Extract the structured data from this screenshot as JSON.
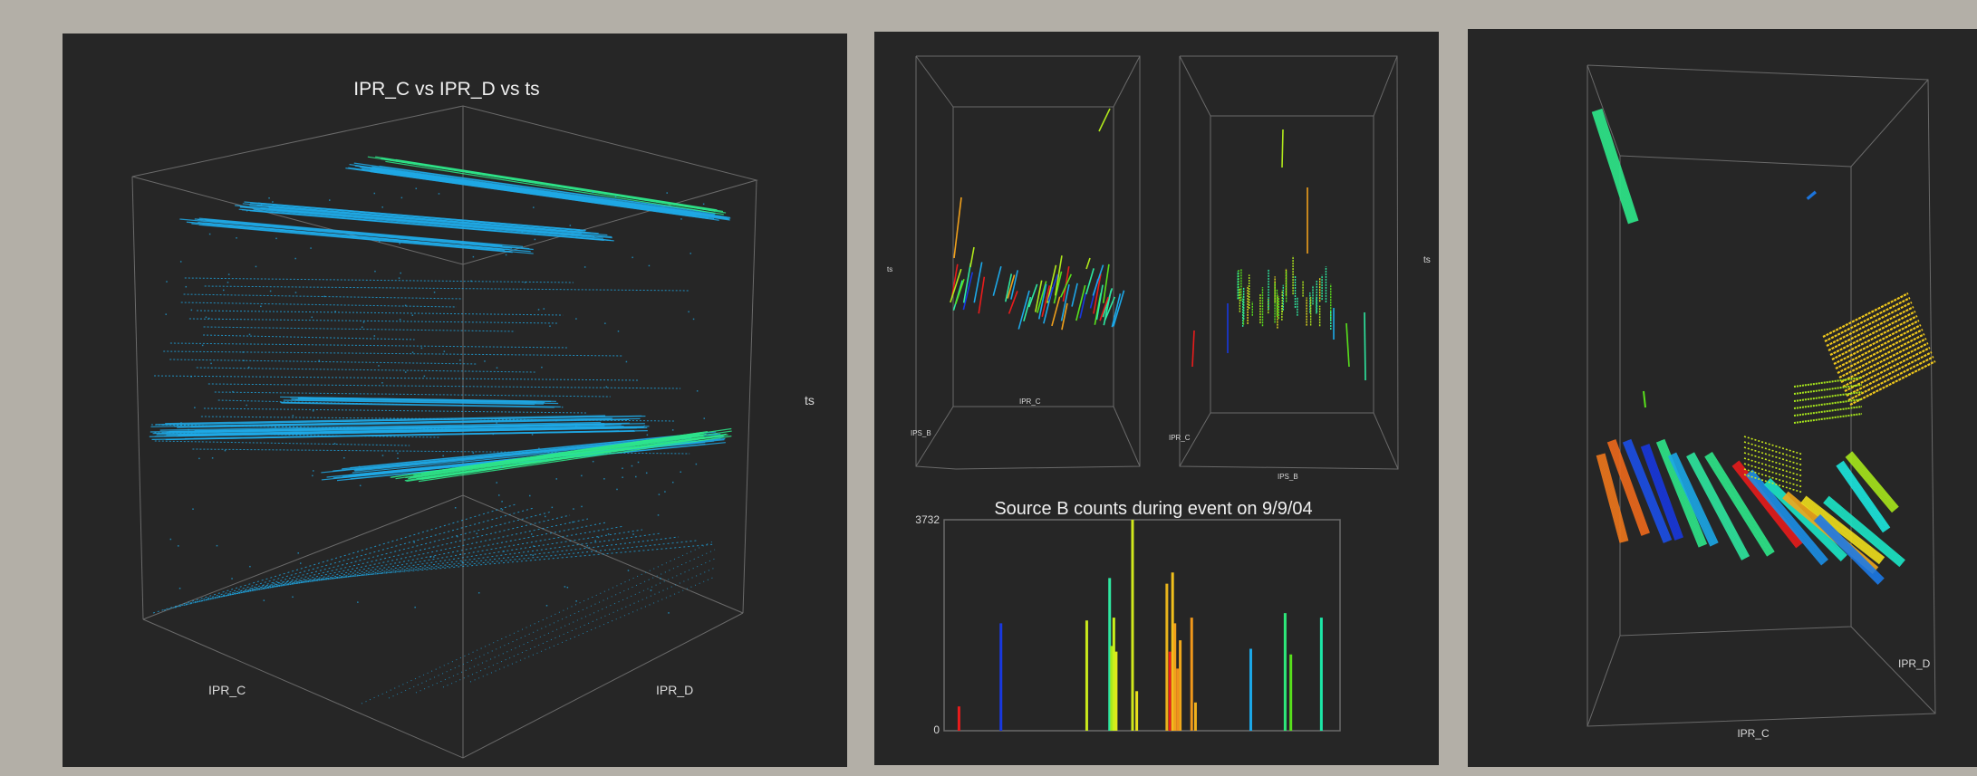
{
  "colors": {
    "background": "#b3afa7",
    "panel": "#262626",
    "box_lines": "#6a6a6a",
    "cyan_blue": "#1fa9e6",
    "green": "#2ee88a"
  },
  "panel_3d_main": {
    "title": "IPR_C vs IPR_D vs ts",
    "x_label": "IPR_C",
    "y_label": "IPR_D",
    "z_label": "ts"
  },
  "panel_small_left": {
    "x_label": "IPR_C",
    "y_label": "IPS_B",
    "z_label": "ts"
  },
  "panel_small_right": {
    "x_label": "IPS_B",
    "y_label": "IPR_C",
    "z_label": "ts"
  },
  "panel_3d_right": {
    "x_label": "IPR_C",
    "y_label": "IPR_D"
  },
  "chart_data": {
    "type": "bar",
    "title": "Source B counts during event on 9/9/04",
    "y_tick_labels": [
      "0",
      "3732"
    ],
    "ylim": [
      0,
      3732
    ],
    "xlim": [
      0,
      100
    ],
    "bars": [
      {
        "x": 2.0,
        "value": 430,
        "color": "#e81c1c"
      },
      {
        "x": 13.0,
        "value": 1900,
        "color": "#1838e0"
      },
      {
        "x": 35.5,
        "value": 1950,
        "color": "#c8e81c"
      },
      {
        "x": 41.5,
        "value": 2700,
        "color": "#2ee8a0"
      },
      {
        "x": 42.0,
        "value": 1500,
        "color": "#a8e81c"
      },
      {
        "x": 42.6,
        "value": 2000,
        "color": "#c8f01c"
      },
      {
        "x": 43.2,
        "value": 1400,
        "color": "#e0e81c"
      },
      {
        "x": 47.5,
        "value": 3732,
        "color": "#d0e81c"
      },
      {
        "x": 48.6,
        "value": 700,
        "color": "#e8e01c"
      },
      {
        "x": 56.5,
        "value": 2600,
        "color": "#e8b41c"
      },
      {
        "x": 57.3,
        "value": 1400,
        "color": "#e81c1c"
      },
      {
        "x": 58.0,
        "value": 2800,
        "color": "#f0c01c"
      },
      {
        "x": 58.6,
        "value": 1900,
        "color": "#f0a01c"
      },
      {
        "x": 59.3,
        "value": 1100,
        "color": "#f0901c"
      },
      {
        "x": 60.0,
        "value": 1600,
        "color": "#f0a81c"
      },
      {
        "x": 63.0,
        "value": 2000,
        "color": "#f0981c"
      },
      {
        "x": 64.0,
        "value": 500,
        "color": "#f0b01c"
      },
      {
        "x": 78.5,
        "value": 1450,
        "color": "#1ca8e8"
      },
      {
        "x": 87.5,
        "value": 2080,
        "color": "#2ee87a"
      },
      {
        "x": 89.0,
        "value": 1350,
        "color": "#58e01c"
      },
      {
        "x": 97.0,
        "value": 2000,
        "color": "#1ce8a8"
      }
    ]
  }
}
